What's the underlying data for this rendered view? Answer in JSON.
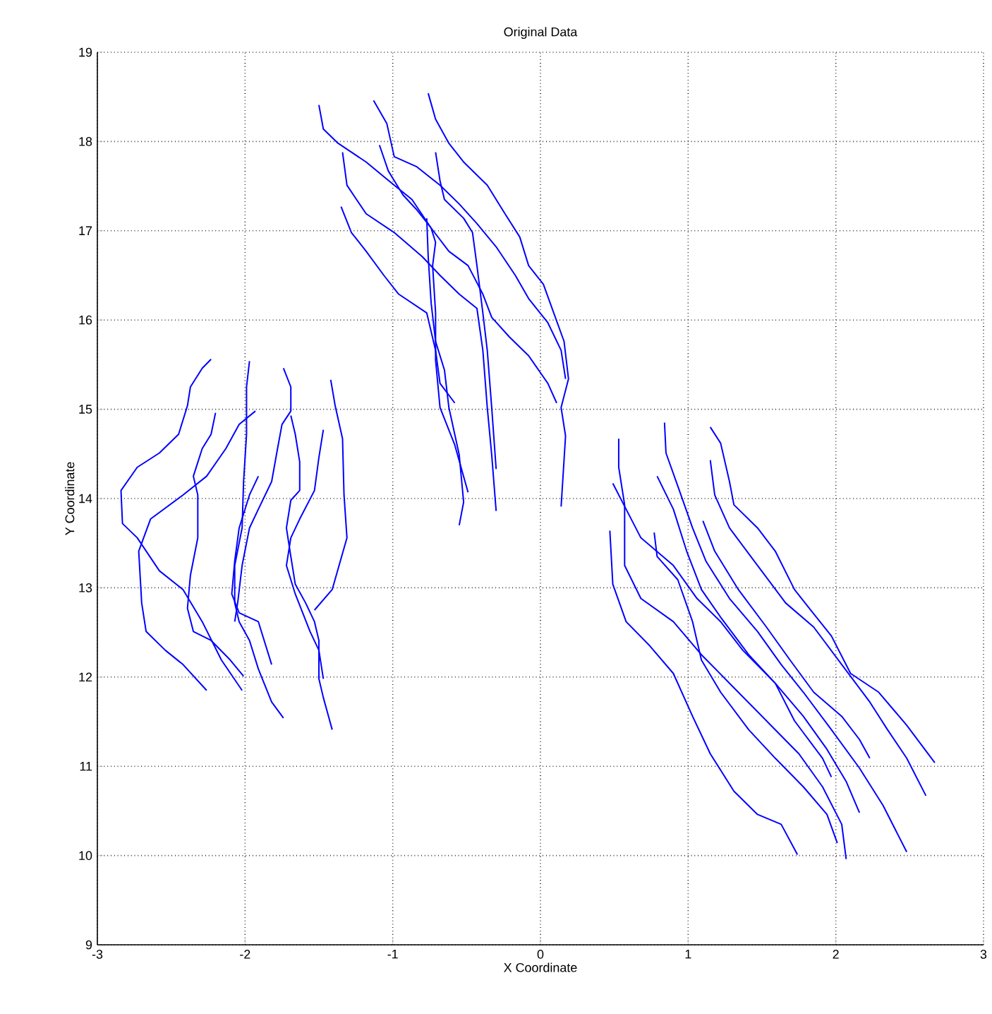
{
  "chart_data": {
    "type": "line",
    "title": "Original Data",
    "xlabel": "X Coordinate",
    "ylabel": "Y Coordinate",
    "xlim": [
      -3,
      3
    ],
    "ylim": [
      9,
      19
    ],
    "xticks": [
      -3,
      -2,
      -1,
      0,
      1,
      2,
      3
    ],
    "yticks": [
      9,
      10,
      11,
      12,
      13,
      14,
      15,
      16,
      17,
      18,
      19
    ],
    "grid": true,
    "series": [
      {
        "color": "#0000ff",
        "x": [
          1.15,
          1.22,
          1.28,
          1.31,
          1.47,
          1.59,
          1.72,
          1.82,
          1.97,
          2.1,
          2.29,
          2.48,
          2.67
        ],
        "values": [
          14.8,
          14.62,
          14.19,
          13.93,
          13.67,
          13.41,
          12.98,
          12.77,
          12.46,
          12.04,
          11.83,
          11.46,
          11.04
        ]
      },
      {
        "color": "#0000ff",
        "x": [
          1.15,
          1.18,
          1.28,
          1.47,
          1.66,
          1.85,
          2.04,
          2.23,
          2.35,
          2.48,
          2.61
        ],
        "values": [
          14.43,
          14.04,
          13.67,
          13.25,
          12.83,
          12.56,
          12.14,
          11.72,
          11.41,
          11.09,
          10.67
        ]
      },
      {
        "color": "#0000ff",
        "x": [
          0.84,
          0.85,
          0.93,
          1.03,
          1.12,
          1.28,
          1.47,
          1.63,
          1.78,
          1.97,
          2.16,
          2.32,
          2.48
        ],
        "values": [
          14.85,
          14.51,
          14.14,
          13.67,
          13.3,
          12.88,
          12.51,
          12.14,
          11.83,
          11.41,
          10.98,
          10.56,
          10.04
        ]
      },
      {
        "color": "#0000ff",
        "x": [
          1.1,
          1.18,
          1.34,
          1.53,
          1.69,
          1.85,
          2.04,
          2.16,
          2.23
        ],
        "values": [
          13.75,
          13.41,
          12.98,
          12.56,
          12.19,
          11.83,
          11.56,
          11.3,
          11.09
        ]
      },
      {
        "color": "#0000ff",
        "x": [
          0.79,
          0.9,
          0.99,
          1.09,
          1.22,
          1.41,
          1.59,
          1.78,
          1.94,
          2.07,
          2.16
        ],
        "values": [
          14.25,
          13.88,
          13.41,
          12.98,
          12.67,
          12.25,
          11.93,
          11.56,
          11.19,
          10.83,
          10.48
        ]
      },
      {
        "color": "#0000ff",
        "x": [
          0.53,
          0.53,
          0.57,
          0.57,
          0.68,
          0.9,
          1.09,
          1.31,
          1.53,
          1.75,
          1.91,
          2.04,
          2.07
        ],
        "values": [
          14.67,
          14.35,
          13.93,
          13.25,
          12.88,
          12.62,
          12.25,
          11.88,
          11.51,
          11.14,
          10.77,
          10.35,
          9.96
        ]
      },
      {
        "color": "#0000ff",
        "x": [
          0.49,
          0.58,
          0.68,
          0.9,
          1.06,
          1.22,
          1.37,
          1.59,
          1.72,
          1.91,
          1.97
        ],
        "values": [
          14.17,
          13.88,
          13.56,
          13.25,
          12.88,
          12.62,
          12.3,
          11.93,
          11.51,
          11.09,
          10.88
        ]
      },
      {
        "color": "#0000ff",
        "x": [
          0.77,
          0.79,
          0.93,
          1.03,
          1.09,
          1.22,
          1.41,
          1.59,
          1.78,
          1.94,
          2.01
        ],
        "values": [
          13.62,
          13.35,
          13.09,
          12.62,
          12.19,
          11.83,
          11.41,
          11.09,
          10.77,
          10.46,
          10.14
        ]
      },
      {
        "color": "#0000ff",
        "x": [
          0.47,
          0.49,
          0.58,
          0.74,
          0.9,
          1.03,
          1.15,
          1.31,
          1.47,
          1.63,
          1.74
        ],
        "values": [
          13.64,
          13.04,
          12.62,
          12.35,
          12.04,
          11.56,
          11.14,
          10.72,
          10.46,
          10.35,
          10.01
        ]
      },
      {
        "color": "#0000ff",
        "x": [
          -0.76,
          -0.71,
          -0.62,
          -0.52,
          -0.36,
          -0.24,
          -0.14,
          -0.08,
          0.02,
          0.09,
          0.16,
          0.19,
          0.14,
          0.17,
          0.14
        ],
        "values": [
          18.54,
          18.25,
          17.98,
          17.77,
          17.51,
          17.19,
          16.93,
          16.61,
          16.4,
          16.08,
          15.76,
          15.34,
          15.02,
          14.7,
          13.91
        ]
      },
      {
        "color": "#0000ff",
        "x": [
          -1.13,
          -1.04,
          -0.99,
          -0.84,
          -0.68,
          -0.55,
          -0.43,
          -0.3,
          -0.17,
          -0.08,
          0.05,
          0.14,
          0.17
        ],
        "values": [
          18.46,
          18.2,
          17.83,
          17.72,
          17.51,
          17.3,
          17.08,
          16.82,
          16.5,
          16.24,
          15.97,
          15.66,
          15.34
        ]
      },
      {
        "color": "#0000ff",
        "x": [
          -1.5,
          -1.47,
          -1.37,
          -1.18,
          -0.99,
          -0.87,
          -0.74,
          -0.62,
          -0.49,
          -0.39,
          -0.33,
          -0.21,
          -0.08,
          0.05,
          0.11
        ],
        "values": [
          18.41,
          18.14,
          17.98,
          17.77,
          17.51,
          17.35,
          17.03,
          16.77,
          16.61,
          16.29,
          16.03,
          15.81,
          15.6,
          15.29,
          15.07
        ]
      },
      {
        "color": "#0000ff",
        "x": [
          -1.09,
          -1.03,
          -0.93,
          -0.84,
          -0.74,
          -0.71,
          -0.73,
          -0.71,
          -0.71,
          -0.68,
          -0.58,
          -0.49
        ],
        "values": [
          17.96,
          17.67,
          17.4,
          17.24,
          17.03,
          16.87,
          16.61,
          16.08,
          15.55,
          15.02,
          14.6,
          14.07
        ]
      },
      {
        "color": "#0000ff",
        "x": [
          -1.34,
          -1.31,
          -1.18,
          -0.99,
          -0.8,
          -0.68,
          -0.55,
          -0.43,
          -0.39,
          -0.36,
          -0.33,
          -0.3
        ],
        "values": [
          17.88,
          17.51,
          17.19,
          16.98,
          16.71,
          16.5,
          16.29,
          16.13,
          15.66,
          15.02,
          14.49,
          13.86
        ]
      },
      {
        "color": "#0000ff",
        "x": [
          -1.35,
          -1.28,
          -1.18,
          -1.06,
          -0.96,
          -0.77,
          -0.71,
          -0.68,
          -0.58
        ],
        "values": [
          17.27,
          16.98,
          16.77,
          16.5,
          16.29,
          16.08,
          15.66,
          15.29,
          15.07
        ]
      },
      {
        "color": "#0000ff",
        "x": [
          -0.71,
          -0.68,
          -0.65,
          -0.52,
          -0.46,
          -0.43,
          -0.39,
          -0.36,
          -0.33,
          -0.3
        ],
        "values": [
          17.88,
          17.56,
          17.35,
          17.14,
          16.98,
          16.61,
          16.08,
          15.66,
          15.02,
          14.33
        ]
      },
      {
        "color": "#0000ff",
        "x": [
          -0.77,
          -0.76,
          -0.74,
          -0.71,
          -0.65,
          -0.62,
          -0.55,
          -0.52,
          -0.55
        ],
        "values": [
          17.14,
          16.71,
          16.19,
          15.76,
          15.44,
          15.02,
          14.49,
          13.96,
          13.7
        ]
      },
      {
        "color": "#0000ff",
        "x": [
          -2.23,
          -2.29,
          -2.37,
          -2.39,
          -2.45,
          -2.58,
          -2.73,
          -2.84,
          -2.83,
          -2.73,
          -2.58,
          -2.42,
          -2.29,
          -2.16,
          -2.02
        ],
        "values": [
          15.56,
          15.46,
          15.25,
          15.04,
          14.72,
          14.51,
          14.35,
          14.09,
          13.72,
          13.56,
          13.19,
          12.98,
          12.62,
          12.19,
          11.85
        ]
      },
      {
        "color": "#0000ff",
        "x": [
          -1.93,
          -2.04,
          -2.13,
          -2.26,
          -2.42,
          -2.64,
          -2.72,
          -2.7,
          -2.67,
          -2.54,
          -2.42,
          -2.26
        ],
        "values": [
          14.98,
          14.83,
          14.56,
          14.25,
          14.04,
          13.77,
          13.41,
          12.83,
          12.51,
          12.3,
          12.14,
          11.85
        ]
      },
      {
        "color": "#0000ff",
        "x": [
          -1.97,
          -1.99,
          -1.99,
          -2.01,
          -2.02,
          -2.07,
          -2.07,
          -2.04,
          -1.97,
          -1.91,
          -1.82,
          -1.74
        ],
        "values": [
          15.54,
          15.25,
          14.72,
          14.19,
          13.67,
          13.25,
          12.83,
          12.62,
          12.41,
          12.09,
          11.72,
          11.54
        ]
      },
      {
        "color": "#0000ff",
        "x": [
          -1.74,
          -1.69,
          -1.69,
          -1.75,
          -1.78,
          -1.82,
          -1.91,
          -1.97,
          -2.02,
          -2.05,
          -2.07
        ],
        "values": [
          15.46,
          15.25,
          14.98,
          14.83,
          14.56,
          14.19,
          13.88,
          13.67,
          13.25,
          12.83,
          12.62
        ]
      },
      {
        "color": "#0000ff",
        "x": [
          -1.42,
          -1.39,
          -1.34,
          -1.33,
          -1.31,
          -1.41,
          -1.53
        ],
        "values": [
          15.33,
          15.04,
          14.67,
          14.04,
          13.56,
          12.98,
          12.75
        ]
      },
      {
        "color": "#0000ff",
        "x": [
          -1.69,
          -1.66,
          -1.63,
          -1.63,
          -1.69,
          -1.72,
          -1.69,
          -1.66,
          -1.59,
          -1.53,
          -1.5,
          -1.5,
          -1.47,
          -1.41
        ],
        "values": [
          14.93,
          14.72,
          14.41,
          14.09,
          13.98,
          13.67,
          13.35,
          13.04,
          12.83,
          12.62,
          12.41,
          11.98,
          11.77,
          11.41
        ]
      },
      {
        "color": "#0000ff",
        "x": [
          -1.47,
          -1.5,
          -1.53,
          -1.63,
          -1.69,
          -1.72,
          -1.66,
          -1.56,
          -1.5,
          -1.47
        ],
        "values": [
          14.77,
          14.46,
          14.09,
          13.77,
          13.56,
          13.25,
          12.93,
          12.51,
          12.3,
          11.98
        ]
      },
      {
        "color": "#0000ff",
        "x": [
          -1.91,
          -1.97,
          -2.04,
          -2.07,
          -2.09,
          -2.04,
          -1.91,
          -1.82
        ],
        "values": [
          14.25,
          14.04,
          13.67,
          13.3,
          12.93,
          12.72,
          12.62,
          12.14
        ]
      },
      {
        "color": "#0000ff",
        "x": [
          -2.2,
          -2.23,
          -2.29,
          -2.35,
          -2.32,
          -2.32,
          -2.37,
          -2.39,
          -2.35,
          -2.23,
          -2.1,
          -2.01
        ],
        "values": [
          14.96,
          14.72,
          14.56,
          14.25,
          14.04,
          13.56,
          13.14,
          12.77,
          12.51,
          12.41,
          12.19,
          12.01
        ]
      }
    ]
  }
}
